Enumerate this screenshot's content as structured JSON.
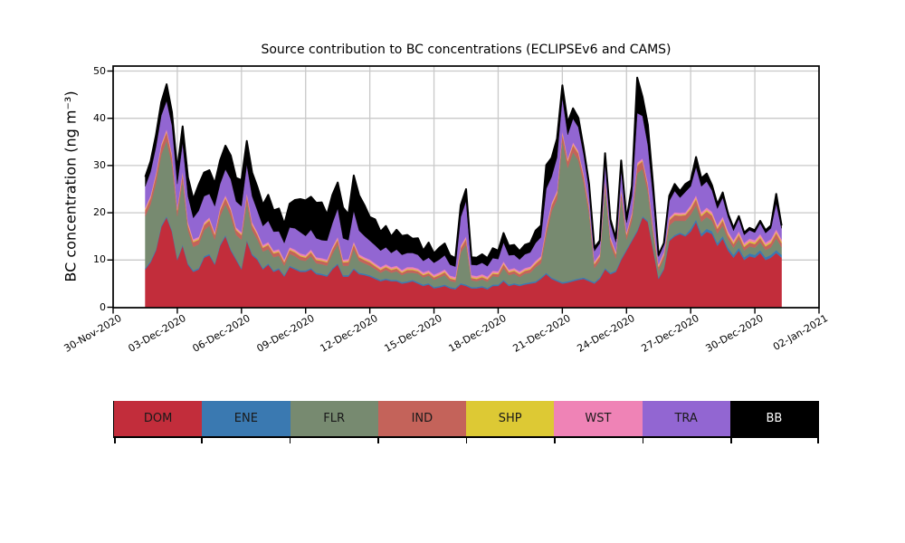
{
  "figure": {
    "background": "#ffffff"
  },
  "chart_data": {
    "type": "area",
    "stacked": true,
    "title": "Source contribution to BC concentrations (ECLIPSEv6 and CAMS)",
    "xlabel": "",
    "ylabel": "BC concentration (ng m⁻³)",
    "ylim": [
      0,
      51
    ],
    "y_ticks": [
      0,
      10,
      20,
      30,
      40,
      50
    ],
    "grid": true,
    "grid_color": "#c9c9c9",
    "frame_color": "#000000",
    "envelope_color": "#000000",
    "legend_position": "bottom",
    "x_unit": "days since 30-Nov-2020 00:00",
    "xlim_days": [
      0,
      33
    ],
    "x_tick_days": [
      0,
      3,
      6,
      9,
      12,
      15,
      18,
      21,
      24,
      27,
      30,
      33
    ],
    "x_tick_labels": [
      "30-Nov-2020",
      "03-Dec-2020",
      "06-Dec-2020",
      "09-Dec-2020",
      "12-Dec-2020",
      "15-Dec-2020",
      "18-Dec-2020",
      "21-Dec-2020",
      "24-Dec-2020",
      "27-Dec-2020",
      "30-Dec-2020",
      "02-Jan-2021"
    ],
    "x_days": [
      1.5,
      1.75,
      2,
      2.25,
      2.5,
      2.75,
      3,
      3.25,
      3.5,
      3.75,
      4,
      4.25,
      4.5,
      4.75,
      5,
      5.25,
      5.5,
      5.75,
      6,
      6.25,
      6.5,
      6.75,
      7,
      7.25,
      7.5,
      7.75,
      8,
      8.25,
      8.5,
      8.75,
      9,
      9.25,
      9.5,
      9.75,
      10,
      10.25,
      10.5,
      10.75,
      11,
      11.25,
      11.5,
      11.75,
      12,
      12.25,
      12.5,
      12.75,
      13,
      13.25,
      13.5,
      13.75,
      14,
      14.25,
      14.5,
      14.75,
      15,
      15.25,
      15.5,
      15.75,
      16,
      16.25,
      16.5,
      16.75,
      17,
      17.25,
      17.5,
      17.75,
      18,
      18.25,
      18.5,
      18.75,
      19,
      19.25,
      19.5,
      19.75,
      20,
      20.25,
      20.5,
      20.75,
      21,
      21.25,
      21.5,
      21.75,
      22,
      22.25,
      22.5,
      22.75,
      23,
      23.25,
      23.5,
      23.75,
      24,
      24.25,
      24.5,
      24.75,
      25,
      25.25,
      25.5,
      25.75,
      26,
      26.25,
      26.5,
      26.75,
      27,
      27.25,
      27.5,
      27.75,
      28,
      28.25,
      28.5,
      28.75,
      29,
      29.25,
      29.5,
      29.75,
      30,
      30.25,
      30.5,
      30.75,
      31,
      31.25
    ],
    "series": [
      {
        "name": "DOM",
        "color": "#c22d3b",
        "values": [
          8,
          9.5,
          12,
          17,
          19,
          16,
          10,
          13,
          9,
          7.5,
          8,
          10.5,
          11,
          9,
          13,
          15,
          12,
          10,
          8,
          14,
          11,
          10,
          8,
          9,
          7.5,
          8,
          6.5,
          8.5,
          8,
          7.5,
          7.5,
          8,
          7,
          6.8,
          6.5,
          8,
          9,
          6.5,
          6.5,
          8,
          7,
          6.8,
          6.5,
          6,
          5.5,
          5.8,
          5.5,
          5.5,
          5,
          5.2,
          5.5,
          5,
          4.5,
          4.8,
          4,
          4.2,
          4.5,
          4,
          3.8,
          4.8,
          4.5,
          4,
          4,
          4.2,
          3.8,
          4.5,
          4.5,
          5.5,
          4.5,
          4.8,
          4.5,
          4.8,
          5,
          5.2,
          6,
          7,
          6,
          5.5,
          5,
          5.2,
          5.5,
          5.8,
          6,
          5.5,
          5,
          6,
          8,
          7,
          7.5,
          10,
          12,
          14,
          16,
          19,
          18,
          12,
          6,
          8,
          14,
          15,
          15.5,
          15,
          16,
          18,
          15,
          16,
          15.5,
          13,
          14.5,
          12,
          10.5,
          12,
          10,
          10.8,
          10.5,
          11.5,
          10,
          10.5,
          11.5,
          10.5
        ]
      },
      {
        "name": "ENE",
        "color": "#3a79b1",
        "values": [
          0.3,
          0.3,
          0.3,
          0.3,
          0.3,
          0.3,
          0.3,
          0.3,
          0.3,
          0.3,
          0.3,
          0.3,
          0.3,
          0.3,
          0.3,
          0.3,
          0.3,
          0.3,
          0.3,
          0.3,
          0.3,
          0.3,
          0.3,
          0.3,
          0.3,
          0.3,
          0.3,
          0.3,
          0.3,
          0.3,
          0.3,
          0.3,
          0.3,
          0.3,
          0.3,
          0.3,
          0.3,
          0.3,
          0.3,
          0.3,
          0.3,
          0.3,
          0.3,
          0.3,
          0.3,
          0.3,
          0.3,
          0.3,
          0.3,
          0.3,
          0.3,
          0.3,
          0.3,
          0.3,
          0.3,
          0.3,
          0.3,
          0.3,
          0.3,
          0.3,
          0.3,
          0.3,
          0.3,
          0.3,
          0.3,
          0.3,
          0.3,
          0.3,
          0.3,
          0.3,
          0.3,
          0.3,
          0.3,
          0.3,
          0.3,
          0.3,
          0.3,
          0.3,
          0.3,
          0.3,
          0.3,
          0.3,
          0.3,
          0.3,
          0.3,
          0.3,
          0.3,
          0.3,
          0.3,
          0.3,
          0.3,
          0.3,
          0.3,
          0.3,
          0.3,
          0.3,
          0.3,
          0.3,
          0.3,
          0.3,
          0.3,
          0.3,
          0.6,
          0.6,
          0.6,
          0.6,
          0.6,
          0.6,
          0.6,
          0.6,
          0.6,
          0.6,
          0.6,
          0.6,
          0.6,
          0.6,
          0.6,
          0.6,
          0.6,
          0.6
        ]
      },
      {
        "name": "FLR",
        "color": "#778a70",
        "values": [
          11,
          12,
          14,
          15,
          16,
          14,
          9,
          13.5,
          7,
          5,
          5,
          5.5,
          6,
          5,
          6,
          6.5,
          7,
          5,
          6,
          8,
          5,
          4,
          3.5,
          3,
          2.8,
          2.6,
          2,
          2.5,
          2.5,
          2.2,
          2,
          2.5,
          2,
          2,
          2,
          3,
          4,
          2,
          2,
          4,
          2.5,
          2.2,
          2,
          1.8,
          1.5,
          1.8,
          1.5,
          1.8,
          1.5,
          1.8,
          1.5,
          1.8,
          1.5,
          1.6,
          1.5,
          1.8,
          2,
          1.3,
          1.2,
          6.5,
          8.5,
          1.4,
          1.2,
          1.4,
          1.3,
          1.8,
          1.6,
          2.5,
          2,
          2,
          1.6,
          2,
          2,
          3,
          3,
          8,
          14,
          17,
          30,
          24,
          27,
          25,
          20,
          14,
          3,
          3.5,
          17,
          6,
          2.5,
          13,
          2,
          4,
          12,
          10,
          6,
          3,
          1.5,
          2,
          3,
          3,
          2.5,
          3,
          3,
          3,
          2.5,
          2.5,
          2.2,
          2,
          2.2,
          1.8,
          1.5,
          1.8,
          1.4,
          1.5,
          1.5,
          1.7,
          1.5,
          1.6,
          2.5,
          1.6
        ]
      },
      {
        "name": "IND",
        "color": "#c4635a",
        "values": [
          1.2,
          1.3,
          1.5,
          1.7,
          1.8,
          1.6,
          1.2,
          1.4,
          1.1,
          1,
          1,
          1.1,
          1.1,
          1,
          1.2,
          1.3,
          1.2,
          1,
          1,
          1.3,
          1.1,
          1,
          0.8,
          0.9,
          0.8,
          0.8,
          0.7,
          0.8,
          0.8,
          0.8,
          0.7,
          0.8,
          0.7,
          0.7,
          0.7,
          0.9,
          1,
          0.7,
          0.8,
          1,
          0.8,
          0.7,
          0.7,
          0.6,
          0.6,
          0.6,
          0.6,
          0.6,
          0.5,
          0.6,
          0.6,
          0.5,
          0.5,
          0.5,
          0.5,
          0.5,
          0.6,
          0.5,
          0.5,
          0.9,
          1.1,
          0.5,
          0.5,
          0.5,
          0.5,
          0.5,
          0.6,
          0.8,
          0.6,
          0.6,
          0.6,
          0.6,
          0.7,
          0.7,
          0.9,
          1.2,
          1.2,
          1.3,
          1.5,
          1.4,
          1.5,
          1.4,
          1.3,
          1.2,
          0.8,
          0.9,
          1.2,
          1,
          0.9,
          1.2,
          1,
          1.2,
          1.7,
          1.6,
          1.4,
          1.1,
          0.7,
          0.8,
          1.1,
          1.2,
          1.1,
          1.2,
          1.2,
          1.3,
          1.2,
          1.2,
          1.1,
          1,
          1.1,
          0.9,
          0.8,
          0.9,
          0.8,
          0.8,
          0.8,
          0.9,
          0.8,
          0.9,
          1.1,
          0.9
        ]
      },
      {
        "name": "SHP",
        "color": "#ddc934",
        "values": [
          0.2,
          0.2,
          0.2,
          0.2,
          0.2,
          0.2,
          0.2,
          0.2,
          0.2,
          0.2,
          0.2,
          0.2,
          0.2,
          0.2,
          0.2,
          0.2,
          0.2,
          0.2,
          0.2,
          0.2,
          0.2,
          0.2,
          0.2,
          0.2,
          0.2,
          0.2,
          0.2,
          0.2,
          0.2,
          0.2,
          0.2,
          0.2,
          0.2,
          0.2,
          0.2,
          0.2,
          0.2,
          0.2,
          0.2,
          0.2,
          0.2,
          0.2,
          0.2,
          0.2,
          0.2,
          0.2,
          0.2,
          0.2,
          0.2,
          0.2,
          0.2,
          0.2,
          0.2,
          0.2,
          0.2,
          0.2,
          0.2,
          0.2,
          0.2,
          0.2,
          0.2,
          0.2,
          0.2,
          0.2,
          0.2,
          0.2,
          0.2,
          0.2,
          0.2,
          0.2,
          0.2,
          0.2,
          0.2,
          0.2,
          0.2,
          0.2,
          0.2,
          0.2,
          0.2,
          0.2,
          0.2,
          0.2,
          0.2,
          0.2,
          0.2,
          0.2,
          0.2,
          0.2,
          0.2,
          0.2,
          0.2,
          0.2,
          0.2,
          0.2,
          0.2,
          0.2,
          0.2,
          0.2,
          0.2,
          0.2,
          0.2,
          0.2,
          0.3,
          0.3,
          0.3,
          0.3,
          0.3,
          0.3,
          0.3,
          0.3,
          0.3,
          0.3,
          0.3,
          0.3,
          0.3,
          0.3,
          0.3,
          0.3,
          0.3,
          0.3
        ]
      },
      {
        "name": "WST",
        "color": "#ef83b6",
        "values": [
          0.4,
          0.4,
          0.4,
          0.4,
          0.4,
          0.4,
          0.4,
          0.4,
          0.4,
          0.4,
          0.4,
          0.4,
          0.4,
          0.4,
          0.4,
          0.4,
          0.4,
          0.4,
          0.4,
          0.4,
          0.4,
          0.4,
          0.4,
          0.4,
          0.4,
          0.4,
          0.4,
          0.4,
          0.4,
          0.4,
          0.4,
          0.4,
          0.4,
          0.4,
          0.4,
          0.4,
          0.4,
          0.4,
          0.4,
          0.4,
          0.4,
          0.4,
          0.4,
          0.4,
          0.4,
          0.4,
          0.4,
          0.4,
          0.4,
          0.4,
          0.4,
          0.4,
          0.4,
          0.4,
          0.4,
          0.4,
          0.4,
          0.4,
          0.4,
          0.4,
          0.4,
          0.4,
          0.4,
          0.4,
          0.4,
          0.4,
          0.4,
          0.4,
          0.4,
          0.4,
          0.4,
          0.4,
          0.4,
          0.4,
          0.4,
          0.4,
          0.4,
          0.4,
          0.4,
          0.4,
          0.4,
          0.4,
          0.4,
          0.4,
          0.4,
          0.4,
          0.4,
          0.4,
          0.4,
          0.4,
          0.4,
          0.4,
          0.4,
          0.4,
          0.4,
          0.4,
          0.4,
          0.4,
          0.4,
          0.4,
          0.4,
          0.4,
          0.5,
          0.5,
          0.5,
          0.5,
          0.5,
          0.5,
          0.5,
          0.5,
          0.5,
          0.5,
          0.5,
          0.5,
          0.5,
          0.5,
          0.5,
          0.5,
          0.5,
          0.5
        ]
      },
      {
        "name": "TRA",
        "color": "#9266d2",
        "values": [
          4.5,
          5,
          5.5,
          6,
          6,
          6,
          5,
          6,
          5.5,
          4.5,
          5.5,
          5.5,
          5,
          5.5,
          5,
          5.5,
          6,
          5.5,
          5.5,
          6,
          5.5,
          4.5,
          4,
          4.5,
          4,
          3.8,
          3.5,
          4.2,
          4.5,
          4.5,
          4,
          4.2,
          4,
          3.8,
          4,
          5,
          6,
          4.5,
          4,
          6.5,
          5,
          4.5,
          4,
          3.8,
          3.5,
          3.6,
          3,
          3.4,
          3.2,
          3,
          3,
          2.9,
          2.4,
          2.7,
          2.5,
          2.7,
          3,
          2.3,
          2.2,
          6,
          7.5,
          2.2,
          2.3,
          2.4,
          2.2,
          2.7,
          2.6,
          4,
          3,
          2.8,
          2.5,
          2.9,
          3,
          3.8,
          4,
          8,
          5.5,
          7,
          7,
          5,
          5,
          5,
          4,
          3.5,
          2.2,
          2.2,
          4.5,
          2.8,
          2,
          4.3,
          2,
          3.5,
          10.5,
          9,
          8,
          6,
          1.6,
          1.5,
          3.5,
          4.5,
          3.2,
          4.3,
          4,
          6,
          5.5,
          5.5,
          4.5,
          3.5,
          4,
          3,
          2,
          2.6,
          1.7,
          1.8,
          1.6,
          2.3,
          2,
          2.3,
          5.5,
          2.3
        ]
      },
      {
        "name": "BB",
        "color": "#000000",
        "values": [
          2,
          2.2,
          2.5,
          2.8,
          3.5,
          2.8,
          3,
          3.5,
          4,
          4,
          5.5,
          5,
          5,
          4.8,
          5,
          5,
          5,
          5,
          5.5,
          5,
          5,
          5,
          4.5,
          5.5,
          4.5,
          4.8,
          4,
          5,
          6,
          7,
          7.5,
          7,
          7.5,
          8,
          5.5,
          6,
          5.5,
          6.5,
          5.5,
          7.5,
          7.5,
          6.5,
          5,
          5.5,
          4,
          4.5,
          3.5,
          4.2,
          4,
          3.8,
          3,
          3.5,
          2.2,
          3.2,
          2,
          2.5,
          2.5,
          2,
          1.8,
          2.5,
          2.5,
          1.6,
          1.6,
          1.8,
          1.7,
          2.1,
          1.8,
          2,
          2,
          2.1,
          1.8,
          2,
          2,
          2.6,
          2.5,
          5,
          4,
          4,
          2.6,
          2.6,
          2.2,
          2,
          1.4,
          1,
          0.7,
          0.6,
          1,
          0.9,
          0.8,
          1.7,
          0.7,
          2,
          7.5,
          4,
          4.3,
          2.6,
          0.4,
          0.4,
          1.1,
          1.5,
          1.4,
          1.7,
          1.2,
          2.1,
          1.7,
          1.7,
          1.1,
          0.9,
          1.1,
          0.7,
          0.6,
          0.6,
          0.5,
          0.5,
          0.5,
          0.5,
          0.6,
          0.6,
          2,
          0.6
        ]
      }
    ]
  }
}
